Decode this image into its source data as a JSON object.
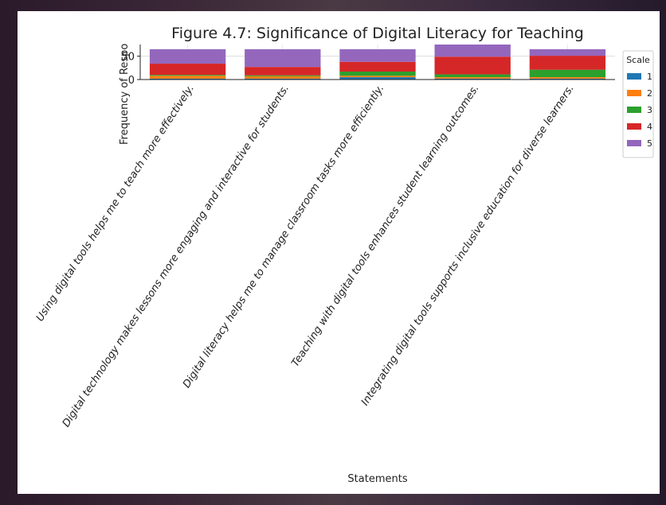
{
  "chart_data": {
    "type": "bar",
    "stacked": true,
    "title": "Figure 4.7: Significance of Digital Literacy for Teaching",
    "xlabel": "Statements",
    "ylabel": "Frequency of Respo",
    "ylim": [
      0,
      75
    ],
    "yticks": [
      0,
      50
    ],
    "grid": true,
    "legend_title": "Scale",
    "legend_position": "right",
    "categories": [
      "Using digital tools helps me to teach more effectively.",
      "Digital technology makes lessons more engaging and interactive for students.",
      "Digital literacy helps me to manage classroom tasks more efficiently.",
      "Teaching with digital tools enhances student learning outcomes.",
      "Integrating digital tools supports inclusive education for diverse learners."
    ],
    "series": [
      {
        "name": "1",
        "color": "#1f77b4",
        "values": [
          2,
          2,
          5,
          2,
          2
        ]
      },
      {
        "name": "2",
        "color": "#ff7f0e",
        "values": [
          6,
          5,
          3,
          3,
          3
        ]
      },
      {
        "name": "3",
        "color": "#2ca02c",
        "values": [
          2,
          2,
          9,
          6,
          16
        ]
      },
      {
        "name": "4",
        "color": "#d62728",
        "values": [
          24,
          18,
          21,
          38,
          30
        ]
      },
      {
        "name": "5",
        "color": "#9467bd",
        "values": [
          31,
          38,
          27,
          26,
          14
        ]
      }
    ]
  }
}
